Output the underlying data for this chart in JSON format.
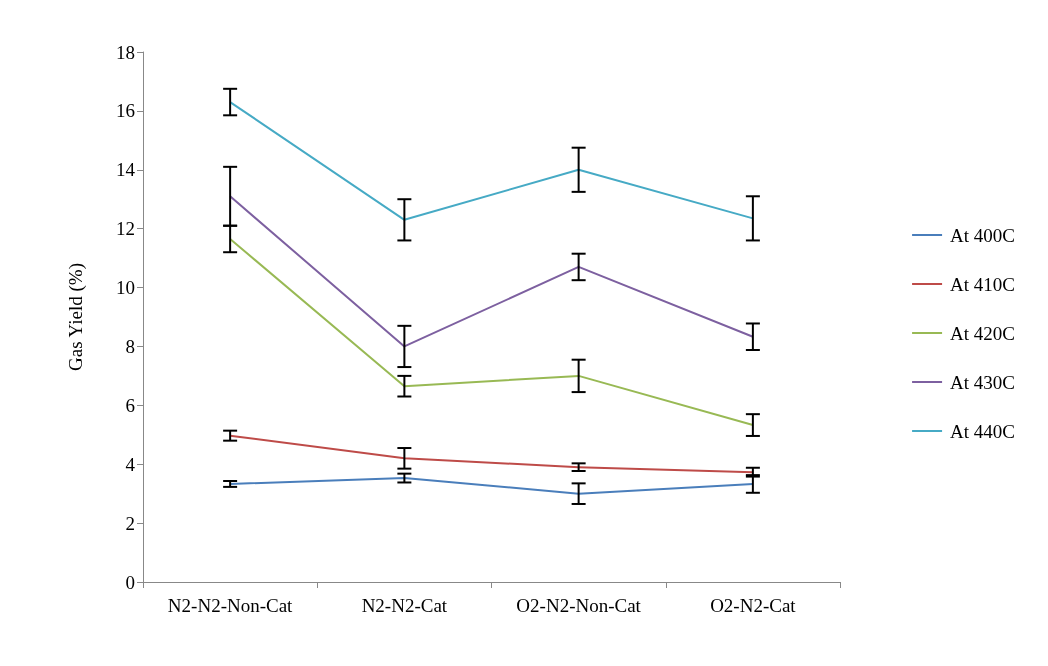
{
  "chart_data": {
    "type": "line",
    "ylabel": "Gas Yield (%)",
    "categories": [
      "N2-N2-Non-Cat",
      "N2-N2-Cat",
      "O2-N2-Non-Cat",
      "O2-N2-Cat"
    ],
    "series": [
      {
        "name": "At 400C",
        "color": "#4a7ebb",
        "values": [
          3.33,
          3.53,
          3.0,
          3.33
        ],
        "errors": [
          0.1,
          0.15,
          0.35,
          0.3
        ]
      },
      {
        "name": "At 410C",
        "color": "#be4b48",
        "values": [
          4.97,
          4.2,
          3.9,
          3.73
        ],
        "errors": [
          0.17,
          0.35,
          0.13,
          0.15
        ]
      },
      {
        "name": "At 420C",
        "color": "#98b954",
        "values": [
          11.65,
          6.65,
          7.0,
          5.33
        ],
        "errors": [
          0.45,
          0.35,
          0.55,
          0.37
        ]
      },
      {
        "name": "At 430C",
        "color": "#7d60a0",
        "values": [
          13.1,
          8.0,
          10.7,
          8.33
        ],
        "errors": [
          1.0,
          0.7,
          0.45,
          0.45
        ]
      },
      {
        "name": "At 440C",
        "color": "#46aac5",
        "values": [
          16.3,
          12.3,
          14.0,
          12.35
        ],
        "errors": [
          0.45,
          0.7,
          0.75,
          0.75
        ]
      }
    ],
    "ylim": [
      0,
      18
    ],
    "yticks": [
      0,
      2,
      4,
      6,
      8,
      10,
      12,
      14,
      16,
      18
    ],
    "grid": false,
    "legend": "right",
    "marker": "none"
  }
}
